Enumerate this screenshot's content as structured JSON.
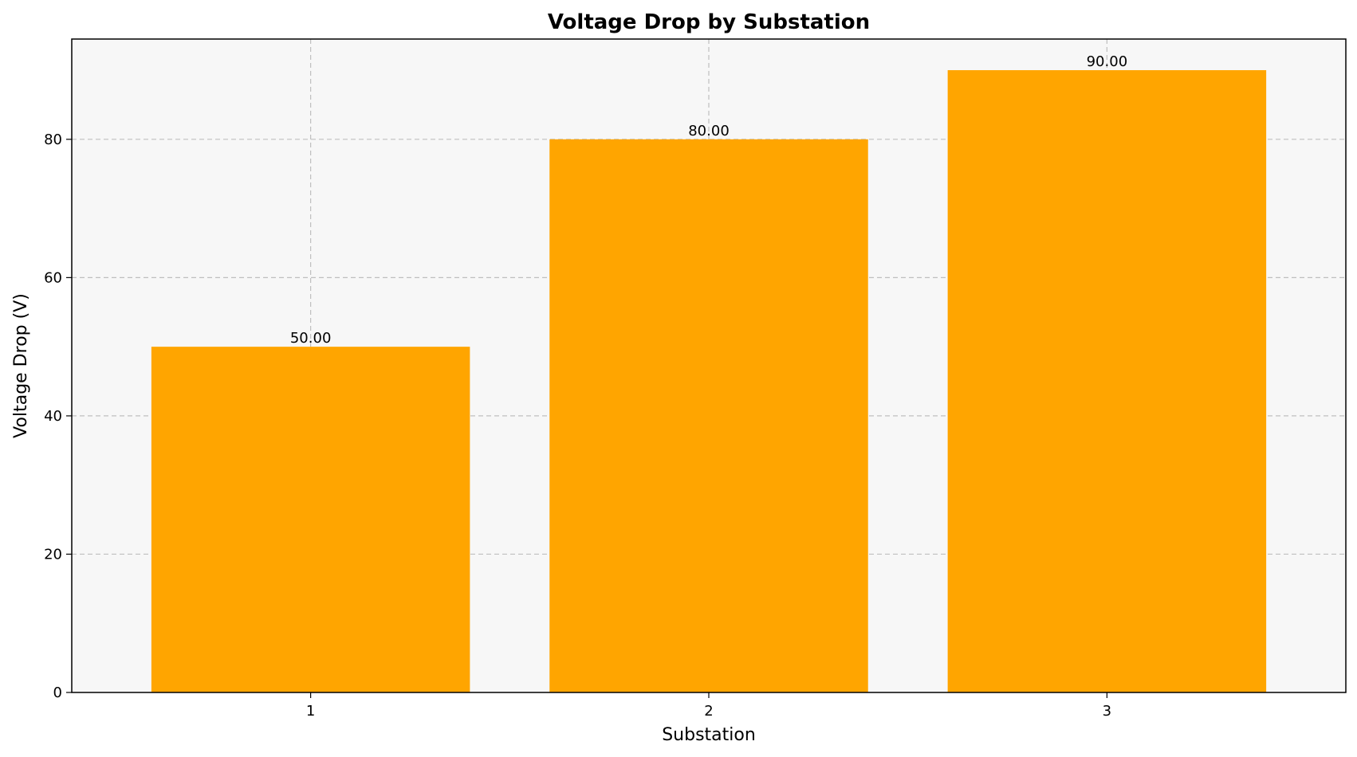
{
  "chart_data": {
    "type": "bar",
    "title": "Voltage Drop by Substation",
    "xlabel": "Substation",
    "ylabel": "Voltage Drop (V)",
    "categories": [
      "1",
      "2",
      "3"
    ],
    "values": [
      50,
      80,
      90
    ],
    "value_labels": [
      "50.00",
      "80.00",
      "90.00"
    ],
    "ylim": [
      0,
      94.5
    ],
    "yticks": [
      0,
      20,
      40,
      60,
      80
    ],
    "grid": true,
    "bar_color": "#FFA500",
    "plot_background": "#F7F7F7"
  }
}
